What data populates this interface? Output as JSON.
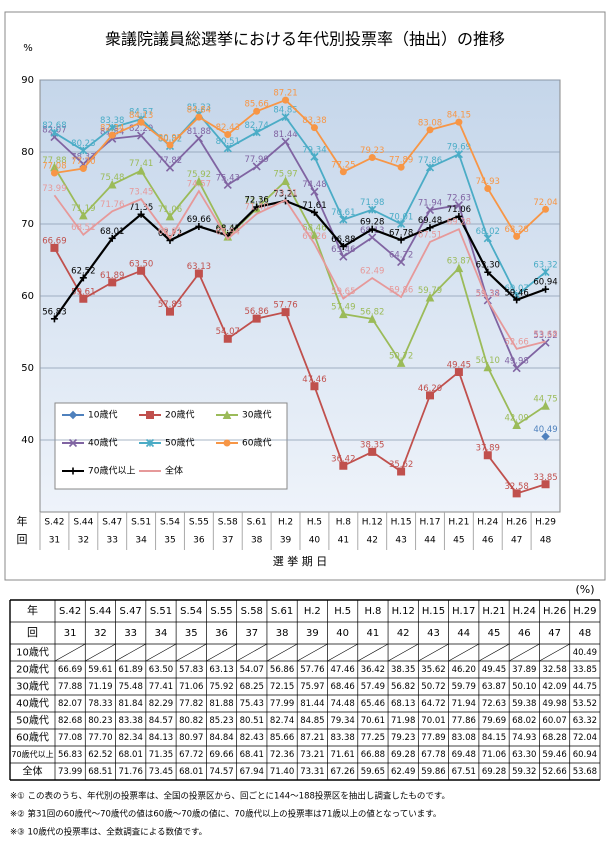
{
  "chart_data": {
    "type": "line",
    "title": "衆議院議員総選挙における年代別投票率（抽出）の推移",
    "y_label": "%",
    "x_label": "選 挙 期 日",
    "year_label": "年",
    "number_label": "回",
    "categories": [
      "S.42",
      "S.44",
      "S.47",
      "S.51",
      "S.54",
      "S.55",
      "S.58",
      "S.61",
      "H.2",
      "H.5",
      "H.8",
      "H.12",
      "H.15",
      "H.17",
      "H.21",
      "H.24",
      "H.26",
      "H.29"
    ],
    "numbers": [
      31,
      32,
      33,
      34,
      35,
      36,
      37,
      38,
      39,
      40,
      41,
      42,
      43,
      44,
      45,
      46,
      47,
      48
    ],
    "ylim": [
      30,
      90
    ],
    "yticks": [
      40,
      50,
      60,
      70,
      80,
      90
    ],
    "grid": true,
    "series": [
      {
        "name": "10歳代",
        "color": "#4f81bd",
        "marker": "diamond",
        "values": [
          null,
          null,
          null,
          null,
          null,
          null,
          null,
          null,
          null,
          null,
          null,
          null,
          null,
          null,
          null,
          null,
          null,
          40.49
        ],
        "value_labels": [
          null,
          null,
          null,
          null,
          null,
          null,
          null,
          null,
          null,
          null,
          null,
          null,
          null,
          null,
          null,
          null,
          null,
          "40.49"
        ]
      },
      {
        "name": "20歳代",
        "color": "#c0504d",
        "marker": "square",
        "values": [
          66.69,
          59.61,
          61.89,
          63.5,
          57.83,
          63.13,
          54.07,
          56.86,
          57.76,
          47.46,
          36.42,
          38.35,
          35.62,
          46.2,
          49.45,
          37.89,
          32.58,
          33.85
        ],
        "value_labels": [
          "66.69",
          "59.61",
          "61.89",
          "63.50",
          "57.83",
          "63.13",
          "54.07",
          "56.86",
          "57.76",
          "47.46",
          "36.42",
          "38.35",
          "35.62",
          "46.20",
          "49.45",
          "37.89",
          "32.58",
          "33.85"
        ]
      },
      {
        "name": "30歳代",
        "color": "#9bbb59",
        "marker": "triangle",
        "values": [
          77.88,
          71.19,
          75.48,
          77.41,
          71.06,
          75.92,
          68.25,
          72.15,
          75.97,
          68.46,
          57.49,
          56.82,
          50.72,
          59.79,
          63.87,
          50.1,
          42.09,
          44.75
        ],
        "value_labels": [
          "77.88",
          "71.19",
          "75.48",
          "77.41",
          "71.06",
          "75.92",
          "68.25",
          "72.15",
          "75.97",
          "68.46",
          "57.49",
          "56.82",
          "50.72",
          "59.79",
          "63.87",
          "50.10",
          "42.09",
          "44.75"
        ]
      },
      {
        "name": "40歳代",
        "color": "#8064a2",
        "marker": "cross",
        "values": [
          82.07,
          78.33,
          81.84,
          82.29,
          77.82,
          81.88,
          75.43,
          77.99,
          81.44,
          74.48,
          65.46,
          68.13,
          64.72,
          71.94,
          72.63,
          59.38,
          49.98,
          53.52
        ],
        "value_labels": [
          "82.07",
          "78.33",
          "81.84",
          "82.29",
          "77.82",
          "81.88",
          "75.43",
          "77.99",
          "81.44",
          "74.48",
          "65.46",
          "68.13",
          "64.72",
          "71.94",
          "72.63",
          "59.38",
          "49.98",
          "53.52"
        ]
      },
      {
        "name": "50歳代",
        "color": "#4bacc6",
        "marker": "star",
        "values": [
          82.68,
          80.23,
          83.38,
          84.57,
          80.82,
          85.23,
          80.51,
          82.74,
          84.85,
          79.34,
          70.61,
          71.98,
          70.01,
          77.86,
          79.69,
          68.02,
          60.07,
          63.32
        ],
        "value_labels": [
          "82.68",
          "80.23",
          "83.38",
          "84.57",
          "80.82",
          "85.23",
          "80.51",
          "82.74",
          "84.85",
          "79.34",
          "70.61",
          "71.98",
          "70.01",
          "77.86",
          "79.69",
          "68.02",
          "60.07",
          "63.32"
        ]
      },
      {
        "name": "60歳代",
        "color": "#f79646",
        "marker": "circle",
        "values": [
          77.08,
          77.7,
          82.34,
          84.13,
          80.97,
          84.84,
          82.43,
          85.66,
          87.21,
          83.38,
          77.25,
          79.23,
          77.89,
          83.08,
          84.15,
          74.93,
          68.28,
          72.04
        ],
        "value_labels": [
          "77.08",
          "77.70",
          "82.34",
          "84.13",
          "80.97",
          "84.84",
          "82.43",
          "85.66",
          "87.21",
          "83.38",
          "77.25",
          "79.23",
          "77.89",
          "83.08",
          "84.15",
          "74.93",
          "68.28",
          "72.04"
        ]
      },
      {
        "name": "70歳代以上",
        "color": "#000000",
        "marker": "plus",
        "values": [
          56.83,
          62.52,
          68.01,
          71.35,
          67.72,
          69.66,
          68.41,
          72.36,
          73.21,
          71.61,
          66.88,
          69.28,
          67.78,
          69.48,
          71.06,
          63.3,
          59.46,
          60.94
        ],
        "value_labels": [
          "56.83",
          "62.52",
          "68.01",
          "71.35",
          "67.72",
          "69.66",
          "68.41",
          "72.36",
          "73.21",
          "71.61",
          "66.88",
          "69.28",
          "67.78",
          "69.48",
          "71.06",
          "63.30",
          "59.46",
          "60.94"
        ]
      },
      {
        "name": "全体",
        "color": "#e6999a",
        "marker": "none",
        "values": [
          73.99,
          68.51,
          71.76,
          73.45,
          68.01,
          74.57,
          67.94,
          71.4,
          73.31,
          67.26,
          59.65,
          62.49,
          59.86,
          67.51,
          69.28,
          59.32,
          52.66,
          53.68
        ],
        "value_labels": [
          "73.99",
          "68.51",
          "71.76",
          "73.45",
          "68.01",
          "74.57",
          "67.94",
          "71.40",
          "73.31",
          "67.26",
          "59.65",
          "62.49",
          "59.86",
          "67.51",
          "69.28",
          "59.32",
          "52.66",
          "53.68"
        ]
      }
    ]
  },
  "table": {
    "unit": "(%)"
  },
  "notes": [
    "※①  この表のうち、年代別の投票率は、全国の投票区から、回ごとに144～188投票区を抽出し調査したものです。",
    "※②  第31回の60歳代～70歳代の値は60歳～70歳の値に、70歳代以上の投票率は71歳以上の値となっています。",
    "※③  10歳代の投票率は、全数調査による数値です。"
  ]
}
